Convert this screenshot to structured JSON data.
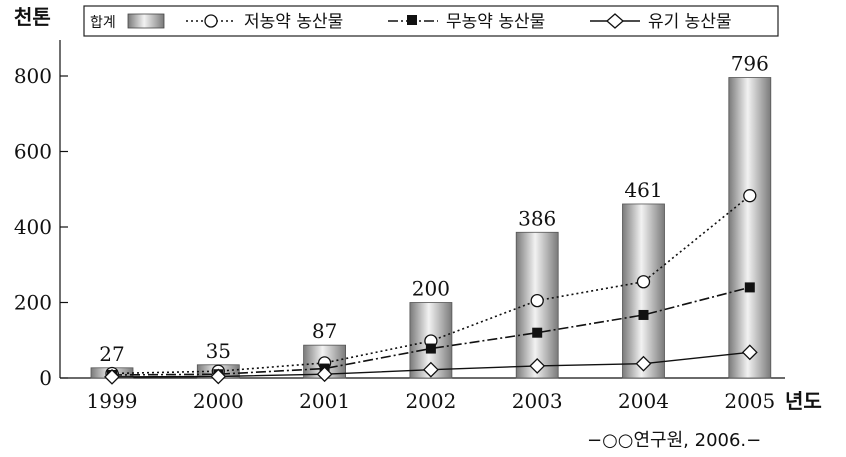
{
  "chart_data": {
    "type": "bar",
    "y_unit": "천톤",
    "x_unit": "년도",
    "categories": [
      "1999",
      "2000",
      "2001",
      "2002",
      "2003",
      "2004",
      "2005"
    ],
    "ylim": [
      0,
      800
    ],
    "yticks": [
      "0",
      "200",
      "400",
      "600",
      "800"
    ],
    "grid": false,
    "legend_position": "top",
    "series": [
      {
        "name": "합계",
        "kind": "bar",
        "values": [
          27,
          35,
          87,
          200,
          386,
          461,
          796
        ],
        "data_labels": [
          "27",
          "35",
          "87",
          "200",
          "386",
          "461",
          "796"
        ]
      },
      {
        "name": "저농약 농산물",
        "kind": "line",
        "line_style": "dotted",
        "marker": "open-circle",
        "values": [
          12,
          18,
          40,
          98,
          205,
          255,
          483
        ]
      },
      {
        "name": "무농약 농산물",
        "kind": "line",
        "line_style": "dash-dot",
        "marker": "filled-square",
        "values": [
          8,
          10,
          25,
          78,
          120,
          167,
          240
        ]
      },
      {
        "name": "유기 농산물",
        "kind": "line",
        "line_style": "solid",
        "marker": "open-diamond",
        "values": [
          3,
          4,
          10,
          22,
          32,
          38,
          68
        ]
      }
    ],
    "source": "−○○연구원, 2006.−"
  }
}
